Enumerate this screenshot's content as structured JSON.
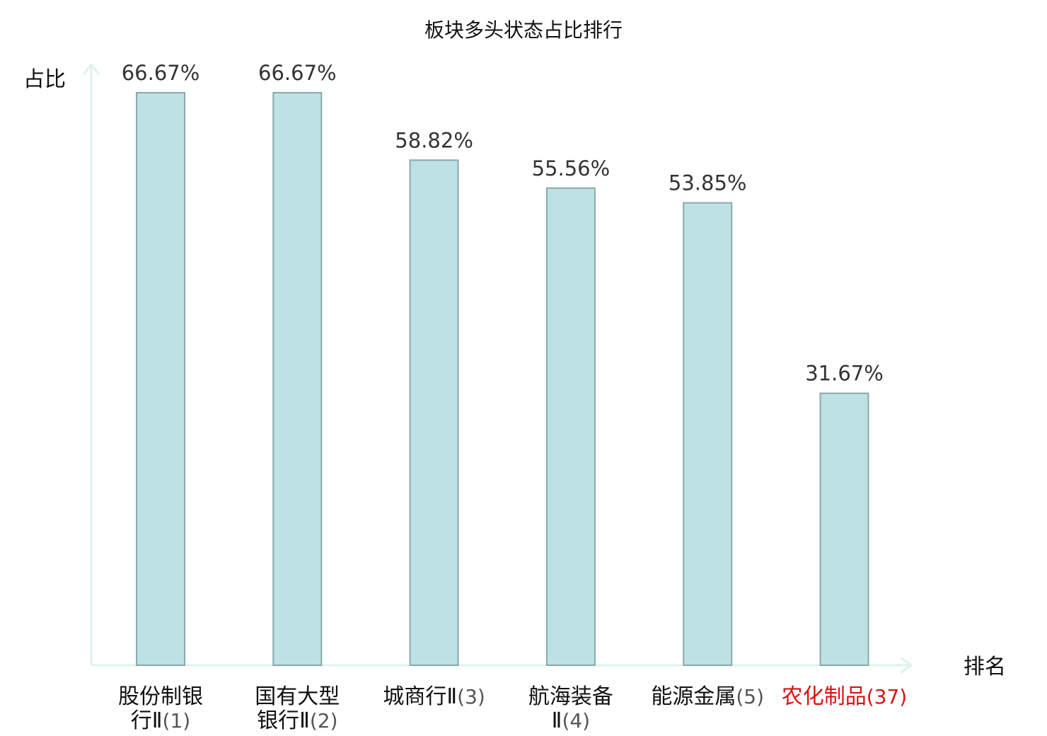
{
  "chart_data": {
    "type": "bar",
    "title": "板块多头状态占比排行",
    "ylabel": "占比",
    "xlabel": "排名",
    "ylim": [
      0,
      70
    ],
    "grid": false,
    "legend": "none",
    "categories": [
      {
        "lines": [
          [
            {
              "t": "股份制银",
              "k": "zh"
            }
          ],
          [
            {
              "t": "行Ⅱ",
              "k": "zh"
            },
            {
              "t": "(1)",
              "k": "rank"
            }
          ]
        ]
      },
      {
        "lines": [
          [
            {
              "t": "国有大型",
              "k": "zh"
            }
          ],
          [
            {
              "t": "银行Ⅱ",
              "k": "zh"
            },
            {
              "t": "(2)",
              "k": "rank"
            }
          ]
        ]
      },
      {
        "lines": [
          [
            {
              "t": "城商行Ⅱ",
              "k": "zh"
            },
            {
              "t": "(3)",
              "k": "rank"
            }
          ]
        ]
      },
      {
        "lines": [
          [
            {
              "t": "航海装备",
              "k": "zh"
            }
          ],
          [
            {
              "t": "Ⅱ",
              "k": "zh"
            },
            {
              "t": "(4)",
              "k": "rank"
            }
          ]
        ]
      },
      {
        "lines": [
          [
            {
              "t": "能源金属",
              "k": "zh"
            },
            {
              "t": "(5)",
              "k": "rank"
            }
          ]
        ]
      },
      {
        "lines": [
          [
            {
              "t": "农化制品",
              "k": "zh"
            },
            {
              "t": "(37)",
              "k": "rank"
            }
          ]
        ],
        "highlight": true
      }
    ],
    "values": [
      66.67,
      66.67,
      58.82,
      55.56,
      53.85,
      31.67
    ],
    "value_labels": [
      "66.67%",
      "66.67%",
      "58.82%",
      "55.56%",
      "53.85%",
      "31.67%"
    ]
  },
  "colors": {
    "bar_fill": "#bde1e4",
    "bar_stroke": "#8aa9aa",
    "axis": "#dff2ef",
    "highlight": "#dd1111",
    "text": "#111111",
    "value_text": "#333333"
  }
}
